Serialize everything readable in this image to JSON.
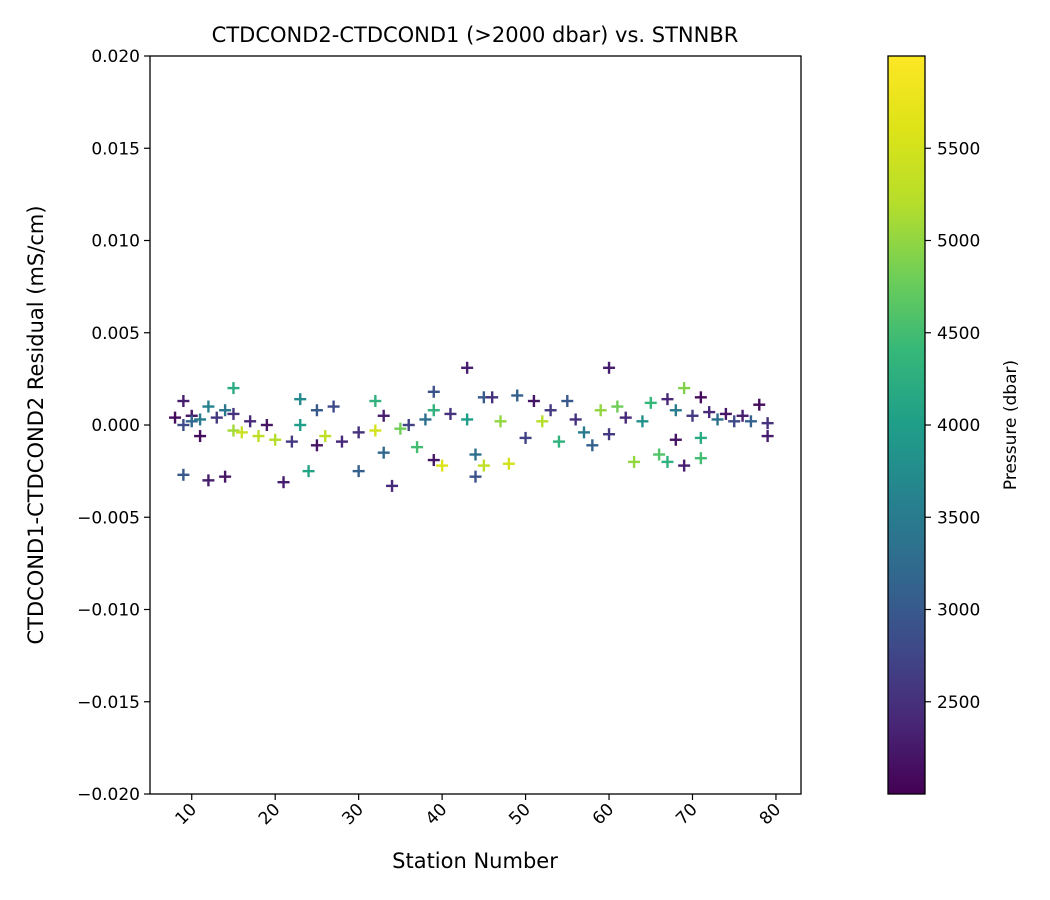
{
  "chart_data": {
    "type": "scatter",
    "title": "CTDCOND2-CTDCOND1 (>2000 dbar) vs. STNNBR",
    "xlabel": "Station Number",
    "ylabel": "CTDCOND1-CTDCOND2 Residual (mS/cm)",
    "xlim": [
      5,
      83
    ],
    "ylim": [
      -0.02,
      0.02
    ],
    "x_ticks": [
      10,
      20,
      30,
      40,
      50,
      60,
      70,
      80
    ],
    "x_tick_labels": [
      "10",
      "20",
      "30",
      "40",
      "50",
      "60",
      "70",
      "80"
    ],
    "x_tick_rotation": -45,
    "y_ticks": [
      -0.02,
      -0.015,
      -0.01,
      -0.005,
      0.0,
      0.005,
      0.01,
      0.015,
      0.02
    ],
    "y_tick_labels": [
      "−0.020",
      "−0.015",
      "−0.010",
      "−0.005",
      "0.000",
      "0.005",
      "0.010",
      "0.015",
      "0.020"
    ],
    "marker": "+",
    "colormap": "viridis",
    "colorbar": {
      "label": "Pressure (dbar)",
      "range": [
        2000,
        6000
      ],
      "ticks": [
        2500,
        3000,
        3500,
        4000,
        4500,
        5000,
        5500
      ],
      "tick_labels": [
        "2500",
        "3000",
        "3500",
        "4000",
        "4500",
        "5000",
        "5500"
      ]
    },
    "points": [
      {
        "x": 8,
        "y": 0.0004,
        "p": 2100
      },
      {
        "x": 9,
        "y": 0.0013,
        "p": 2300
      },
      {
        "x": 9,
        "y": 0.0,
        "p": 2800
      },
      {
        "x": 9,
        "y": -0.0027,
        "p": 3000
      },
      {
        "x": 10,
        "y": 0.0005,
        "p": 2200
      },
      {
        "x": 10,
        "y": 0.0002,
        "p": 3200
      },
      {
        "x": 11,
        "y": -0.0006,
        "p": 2100
      },
      {
        "x": 11,
        "y": 0.0003,
        "p": 3500
      },
      {
        "x": 12,
        "y": -0.003,
        "p": 2300
      },
      {
        "x": 12,
        "y": 0.001,
        "p": 3600
      },
      {
        "x": 13,
        "y": 0.0004,
        "p": 2600
      },
      {
        "x": 14,
        "y": -0.0028,
        "p": 2200
      },
      {
        "x": 14,
        "y": 0.0008,
        "p": 3400
      },
      {
        "x": 15,
        "y": 0.002,
        "p": 4200
      },
      {
        "x": 15,
        "y": -0.0003,
        "p": 5100
      },
      {
        "x": 15,
        "y": 0.0006,
        "p": 2500
      },
      {
        "x": 16,
        "y": -0.0004,
        "p": 5400
      },
      {
        "x": 17,
        "y": 0.0002,
        "p": 2400
      },
      {
        "x": 18,
        "y": -0.0006,
        "p": 5300
      },
      {
        "x": 19,
        "y": 0.0,
        "p": 2200
      },
      {
        "x": 20,
        "y": -0.0008,
        "p": 5200
      },
      {
        "x": 21,
        "y": -0.0031,
        "p": 2300
      },
      {
        "x": 22,
        "y": -0.0009,
        "p": 2600
      },
      {
        "x": 23,
        "y": 0.0014,
        "p": 3700
      },
      {
        "x": 23,
        "y": 0.0,
        "p": 4000
      },
      {
        "x": 24,
        "y": -0.0025,
        "p": 4100
      },
      {
        "x": 25,
        "y": 0.0008,
        "p": 3000
      },
      {
        "x": 25,
        "y": -0.0011,
        "p": 2200
      },
      {
        "x": 26,
        "y": -0.0006,
        "p": 5300
      },
      {
        "x": 27,
        "y": 0.001,
        "p": 2800
      },
      {
        "x": 28,
        "y": -0.0009,
        "p": 2400
      },
      {
        "x": 30,
        "y": -0.0025,
        "p": 3100
      },
      {
        "x": 30,
        "y": -0.0004,
        "p": 2500
      },
      {
        "x": 32,
        "y": 0.0013,
        "p": 4300
      },
      {
        "x": 32,
        "y": -0.0003,
        "p": 5500
      },
      {
        "x": 33,
        "y": -0.0015,
        "p": 3200
      },
      {
        "x": 33,
        "y": 0.0005,
        "p": 2300
      },
      {
        "x": 34,
        "y": -0.0033,
        "p": 2400
      },
      {
        "x": 35,
        "y": -0.0002,
        "p": 4800
      },
      {
        "x": 36,
        "y": 0.0,
        "p": 2700
      },
      {
        "x": 37,
        "y": -0.0012,
        "p": 4500
      },
      {
        "x": 38,
        "y": 0.0003,
        "p": 3300
      },
      {
        "x": 39,
        "y": 0.0018,
        "p": 2900
      },
      {
        "x": 39,
        "y": -0.0019,
        "p": 2200
      },
      {
        "x": 39,
        "y": 0.0008,
        "p": 4300
      },
      {
        "x": 40,
        "y": -0.0022,
        "p": 5600
      },
      {
        "x": 41,
        "y": 0.0006,
        "p": 2500
      },
      {
        "x": 43,
        "y": 0.0031,
        "p": 2300
      },
      {
        "x": 43,
        "y": 0.0003,
        "p": 4000
      },
      {
        "x": 44,
        "y": -0.0028,
        "p": 2900
      },
      {
        "x": 44,
        "y": -0.0016,
        "p": 3300
      },
      {
        "x": 45,
        "y": 0.0015,
        "p": 3000
      },
      {
        "x": 45,
        "y": -0.0022,
        "p": 5300
      },
      {
        "x": 46,
        "y": 0.0015,
        "p": 2500
      },
      {
        "x": 47,
        "y": 0.0002,
        "p": 5000
      },
      {
        "x": 48,
        "y": -0.0021,
        "p": 5500
      },
      {
        "x": 49,
        "y": 0.0016,
        "p": 3100
      },
      {
        "x": 50,
        "y": -0.0007,
        "p": 2700
      },
      {
        "x": 51,
        "y": 0.0013,
        "p": 2200
      },
      {
        "x": 52,
        "y": 0.0002,
        "p": 5200
      },
      {
        "x": 53,
        "y": 0.0008,
        "p": 2600
      },
      {
        "x": 54,
        "y": -0.0009,
        "p": 4300
      },
      {
        "x": 55,
        "y": 0.0013,
        "p": 3000
      },
      {
        "x": 56,
        "y": 0.0003,
        "p": 2500
      },
      {
        "x": 57,
        "y": -0.0004,
        "p": 3500
      },
      {
        "x": 58,
        "y": -0.0011,
        "p": 3100
      },
      {
        "x": 59,
        "y": 0.0008,
        "p": 5000
      },
      {
        "x": 60,
        "y": 0.0031,
        "p": 2300
      },
      {
        "x": 60,
        "y": -0.0005,
        "p": 2600
      },
      {
        "x": 61,
        "y": 0.001,
        "p": 4800
      },
      {
        "x": 62,
        "y": 0.0004,
        "p": 2400
      },
      {
        "x": 63,
        "y": -0.002,
        "p": 5000
      },
      {
        "x": 64,
        "y": 0.0002,
        "p": 3800
      },
      {
        "x": 65,
        "y": 0.0012,
        "p": 4400
      },
      {
        "x": 66,
        "y": -0.0016,
        "p": 4600
      },
      {
        "x": 67,
        "y": -0.002,
        "p": 4300
      },
      {
        "x": 67,
        "y": 0.0014,
        "p": 2400
      },
      {
        "x": 68,
        "y": -0.0008,
        "p": 2200
      },
      {
        "x": 68,
        "y": 0.0008,
        "p": 3500
      },
      {
        "x": 69,
        "y": 0.002,
        "p": 4900
      },
      {
        "x": 69,
        "y": -0.0022,
        "p": 2300
      },
      {
        "x": 70,
        "y": 0.0005,
        "p": 2600
      },
      {
        "x": 71,
        "y": -0.0018,
        "p": 4500
      },
      {
        "x": 71,
        "y": -0.0007,
        "p": 4200
      },
      {
        "x": 71,
        "y": 0.0015,
        "p": 2100
      },
      {
        "x": 72,
        "y": 0.0007,
        "p": 2400
      },
      {
        "x": 73,
        "y": 0.0003,
        "p": 3300
      },
      {
        "x": 74,
        "y": 0.0006,
        "p": 2200
      },
      {
        "x": 75,
        "y": 0.0002,
        "p": 2800
      },
      {
        "x": 76,
        "y": 0.0005,
        "p": 2300
      },
      {
        "x": 77,
        "y": 0.0002,
        "p": 3100
      },
      {
        "x": 78,
        "y": 0.0011,
        "p": 2100
      },
      {
        "x": 79,
        "y": -0.0006,
        "p": 2300
      },
      {
        "x": 79,
        "y": 0.0001,
        "p": 2500
      }
    ]
  }
}
